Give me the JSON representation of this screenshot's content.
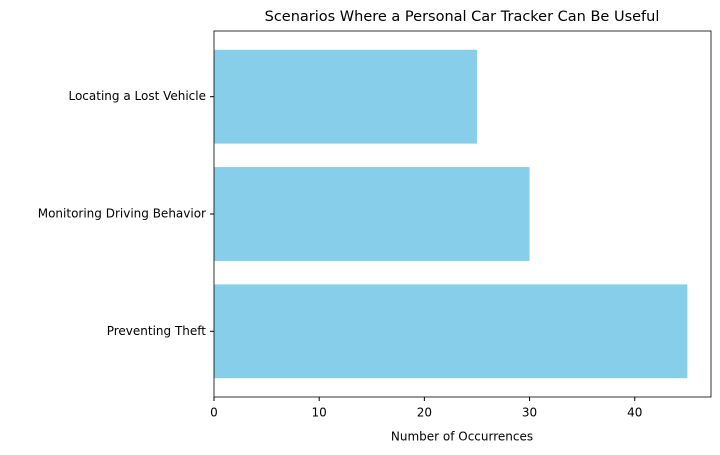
{
  "chart_data": {
    "type": "barh",
    "title": "Scenarios Where a Personal Car Tracker Can Be Useful",
    "x_label": "Number of Occurrences",
    "categories": [
      "Preventing Theft",
      "Monitoring Driving Behavior",
      "Locating a Lost Vehicle"
    ],
    "values": [
      45,
      30,
      25
    ],
    "color": "#87ceeb",
    "xlim": [
      0,
      47.25
    ],
    "xticks": [
      0,
      10,
      20,
      30,
      40
    ],
    "grid": false
  }
}
